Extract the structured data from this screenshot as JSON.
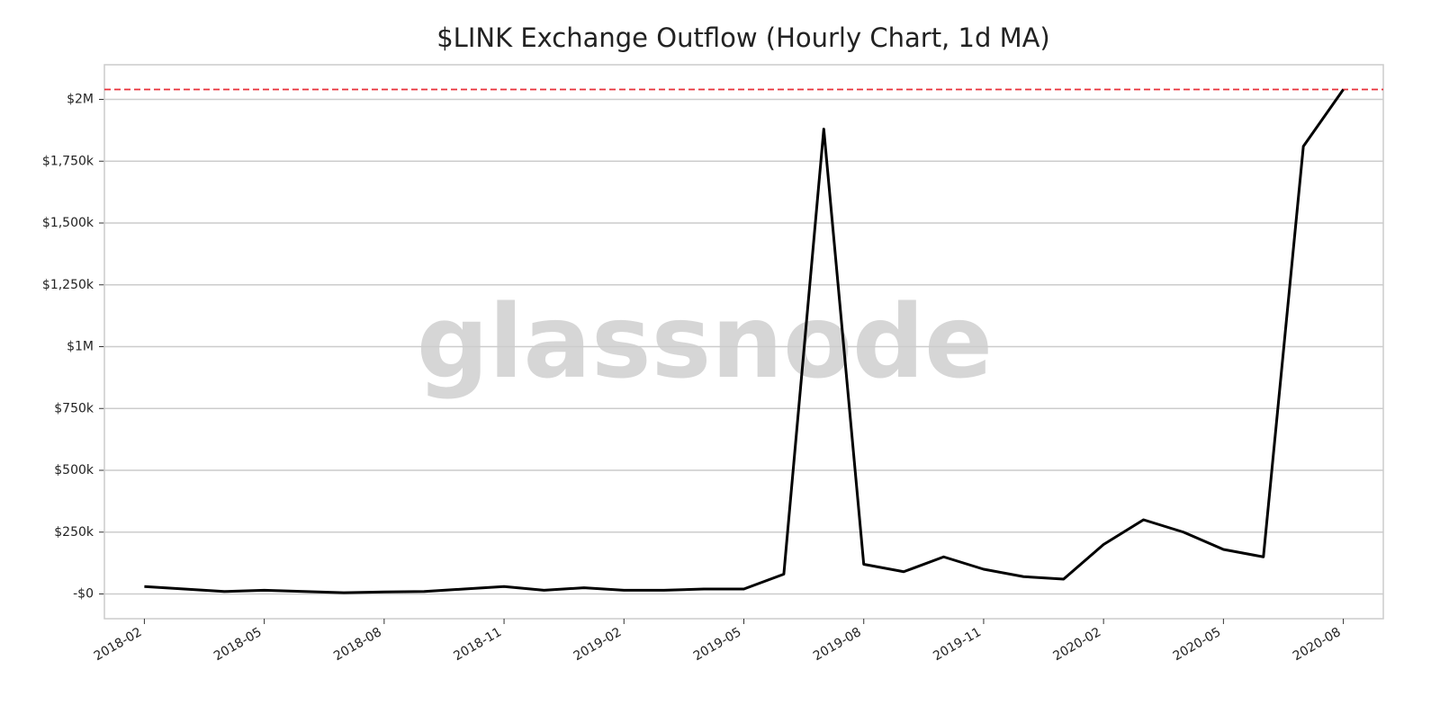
{
  "chart_data": {
    "type": "line",
    "title": "$LINK Exchange Outflow (Hourly Chart, 1d MA)",
    "watermark": "glassnode",
    "x": [
      "2018-02",
      "2018-03",
      "2018-04",
      "2018-05",
      "2018-06",
      "2018-07",
      "2018-08",
      "2018-09",
      "2018-10",
      "2018-11",
      "2018-12",
      "2019-01",
      "2019-02",
      "2019-03",
      "2019-04",
      "2019-05",
      "2019-06",
      "2019-07",
      "2019-08",
      "2019-09",
      "2019-10",
      "2019-11",
      "2019-12",
      "2020-01",
      "2020-02",
      "2020-03",
      "2020-04",
      "2020-05",
      "2020-06",
      "2020-07",
      "2020-08"
    ],
    "series": [
      {
        "color": "#000000",
        "values": [
          30000,
          20000,
          10000,
          15000,
          10000,
          5000,
          8000,
          10000,
          20000,
          30000,
          15000,
          25000,
          15000,
          15000,
          20000,
          20000,
          80000,
          1880000,
          120000,
          90000,
          150000,
          100000,
          70000,
          60000,
          200000,
          300000,
          250000,
          180000,
          150000,
          1810000,
          2040000
        ]
      }
    ],
    "xlim": [
      "2018-01",
      "2020-09"
    ],
    "xticks": [
      "2018-02",
      "2018-05",
      "2018-08",
      "2018-11",
      "2019-02",
      "2019-05",
      "2019-08",
      "2019-11",
      "2020-02",
      "2020-05",
      "2020-08"
    ],
    "ylim": [
      -100000,
      2140000
    ],
    "yticks": [
      {
        "value": 0,
        "label": "-$0"
      },
      {
        "value": 250000,
        "label": "$250k"
      },
      {
        "value": 500000,
        "label": "$500k"
      },
      {
        "value": 750000,
        "label": "$750k"
      },
      {
        "value": 1000000,
        "label": "$1M"
      },
      {
        "value": 1250000,
        "label": "$1,250k"
      },
      {
        "value": 1500000,
        "label": "$1,500k"
      },
      {
        "value": 1750000,
        "label": "$1,750k"
      },
      {
        "value": 2000000,
        "label": "$2M"
      }
    ],
    "grid": true,
    "reference_line": {
      "value": 2040000,
      "color": "#e8313a"
    }
  }
}
